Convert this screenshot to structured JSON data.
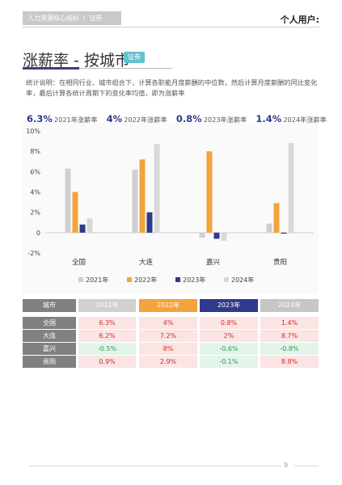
{
  "header": {
    "section": "人力资源核心指标",
    "separator": "I",
    "tag": "证券",
    "user_label": "个人用户:"
  },
  "page": {
    "title": "涨薪率 - 按城市",
    "title_tag": "证券",
    "description": "统计说明：在相同行业、城市组合下，计算各职能月度薪酬的中位数，然后计算月度薪酬的同比变化率，最后计算各统计周期下的变化率均值，即为涨薪率",
    "page_number": "9"
  },
  "kpis": [
    {
      "value": "6.3%",
      "label": "2021年涨薪率"
    },
    {
      "value": "4%",
      "label": "2022年涨薪率"
    },
    {
      "value": "0.8%",
      "label": "2023年涨薪率"
    },
    {
      "value": "1.4%",
      "label": "2024年涨薪率"
    }
  ],
  "chart_data": {
    "type": "bar",
    "categories": [
      "全国",
      "大连",
      "嘉兴",
      "贵阳"
    ],
    "series": [
      {
        "name": "2021年",
        "color": "#cfcfcf",
        "values": [
          6.3,
          6.2,
          -0.5,
          0.9
        ]
      },
      {
        "name": "2022年",
        "color": "#f4a23c",
        "values": [
          4,
          7.2,
          8,
          2.9
        ]
      },
      {
        "name": "2023年",
        "color": "#2f3a8c",
        "values": [
          0.8,
          2,
          -0.6,
          -0.1
        ]
      },
      {
        "name": "2024年",
        "color": "#d9d9d9",
        "values": [
          1.4,
          8.7,
          -0.8,
          8.8
        ]
      }
    ],
    "ylim": [
      -2,
      10
    ],
    "yticks": [
      "-2%",
      "0",
      "2%",
      "4%",
      "6%",
      "8%",
      "10%"
    ],
    "ytick_values": [
      -2,
      0,
      2,
      4,
      6,
      8,
      10
    ],
    "legend_position": "bottom",
    "grid": false
  },
  "table": {
    "headers": [
      "城市",
      "2021年",
      "2022年",
      "2023年",
      "2024年"
    ],
    "rows": [
      {
        "city": "全国",
        "values": [
          "6.3%",
          "4%",
          "0.8%",
          "1.4%"
        ],
        "signs": [
          "pos",
          "pos",
          "pos",
          "pos"
        ]
      },
      {
        "city": "大连",
        "values": [
          "6.2%",
          "7.2%",
          "2%",
          "8.7%"
        ],
        "signs": [
          "pos",
          "pos",
          "pos",
          "pos"
        ]
      },
      {
        "city": "嘉兴",
        "values": [
          "-0.5%",
          "8%",
          "-0.6%",
          "-0.8%"
        ],
        "signs": [
          "neg",
          "pos",
          "neg",
          "neg"
        ]
      },
      {
        "city": "贵阳",
        "values": [
          "0.9%",
          "2.9%",
          "-0.1%",
          "8.8%"
        ],
        "signs": [
          "pos",
          "pos",
          "neg",
          "pos"
        ]
      }
    ]
  }
}
